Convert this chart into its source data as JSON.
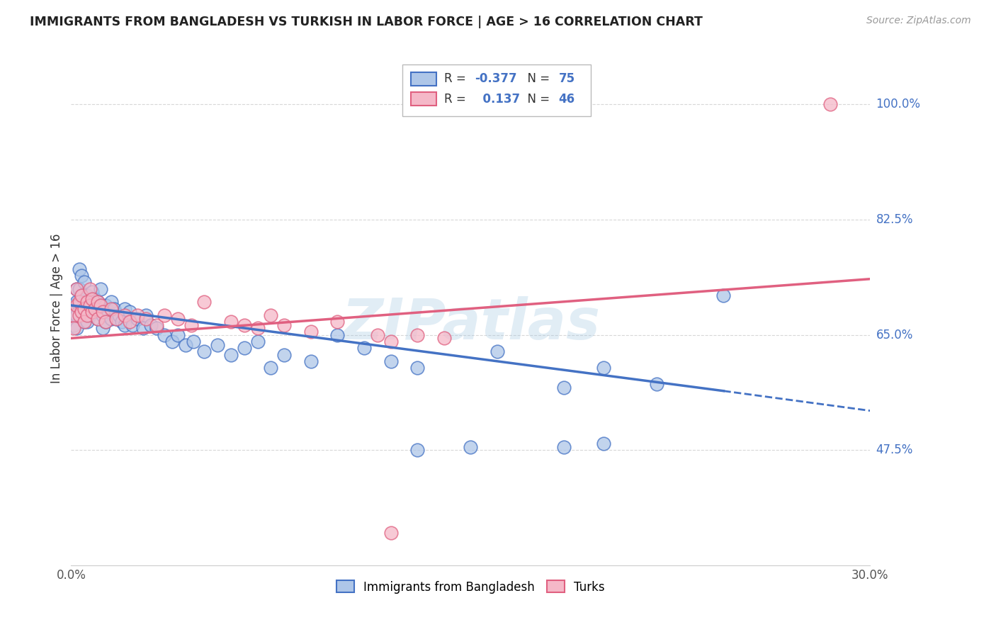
{
  "title": "IMMIGRANTS FROM BANGLADESH VS TURKISH IN LABOR FORCE | AGE > 16 CORRELATION CHART",
  "source": "Source: ZipAtlas.com",
  "ylabel": "In Labor Force | Age > 16",
  "xlim": [
    0.0,
    0.3
  ],
  "ylim": [
    0.3,
    1.08
  ],
  "xtick_pos": [
    0.0,
    0.05,
    0.1,
    0.15,
    0.2,
    0.25,
    0.3
  ],
  "xtick_labels": [
    "0.0%",
    "",
    "",
    "",
    "",
    "",
    "30.0%"
  ],
  "ytick_positions": [
    0.475,
    0.65,
    0.825,
    1.0
  ],
  "ytick_labels": [
    "47.5%",
    "65.0%",
    "82.5%",
    "100.0%"
  ],
  "bangladesh_R": -0.377,
  "bangladesh_N": 75,
  "turks_R": 0.137,
  "turks_N": 46,
  "bangladesh_color": "#aec6e8",
  "turks_color": "#f5b8c8",
  "bangladesh_line_color": "#4472c4",
  "turks_line_color": "#e06080",
  "watermark": "ZIPatlas",
  "bd_line_x0": 0.0,
  "bd_line_y0": 0.695,
  "bd_line_x1": 0.245,
  "bd_line_y1": 0.565,
  "bd_line_x2": 0.3,
  "bd_line_y2": 0.535,
  "tk_line_x0": 0.0,
  "tk_line_y0": 0.645,
  "tk_line_x1": 0.3,
  "tk_line_y1": 0.735,
  "bd_scatter_x": [
    0.001,
    0.001,
    0.001,
    0.002,
    0.002,
    0.002,
    0.002,
    0.003,
    0.003,
    0.003,
    0.004,
    0.004,
    0.004,
    0.005,
    0.005,
    0.005,
    0.006,
    0.006,
    0.006,
    0.007,
    0.007,
    0.008,
    0.008,
    0.009,
    0.009,
    0.01,
    0.01,
    0.011,
    0.011,
    0.012,
    0.012,
    0.013,
    0.013,
    0.014,
    0.015,
    0.015,
    0.016,
    0.017,
    0.018,
    0.019,
    0.02,
    0.02,
    0.022,
    0.023,
    0.025,
    0.027,
    0.028,
    0.03,
    0.032,
    0.035,
    0.038,
    0.04,
    0.043,
    0.046,
    0.05,
    0.055,
    0.06,
    0.065,
    0.07,
    0.075,
    0.08,
    0.09,
    0.1,
    0.11,
    0.12,
    0.13,
    0.15,
    0.16,
    0.185,
    0.2,
    0.22,
    0.245,
    0.2,
    0.185,
    0.13
  ],
  "bd_scatter_y": [
    0.695,
    0.68,
    0.665,
    0.72,
    0.7,
    0.68,
    0.66,
    0.75,
    0.72,
    0.695,
    0.74,
    0.71,
    0.685,
    0.73,
    0.7,
    0.67,
    0.71,
    0.69,
    0.67,
    0.7,
    0.68,
    0.715,
    0.69,
    0.705,
    0.685,
    0.7,
    0.675,
    0.72,
    0.695,
    0.68,
    0.66,
    0.695,
    0.67,
    0.685,
    0.7,
    0.675,
    0.69,
    0.675,
    0.68,
    0.67,
    0.69,
    0.665,
    0.685,
    0.665,
    0.675,
    0.66,
    0.68,
    0.665,
    0.66,
    0.65,
    0.64,
    0.65,
    0.635,
    0.64,
    0.625,
    0.635,
    0.62,
    0.63,
    0.64,
    0.6,
    0.62,
    0.61,
    0.65,
    0.63,
    0.61,
    0.6,
    0.48,
    0.625,
    0.57,
    0.6,
    0.575,
    0.71,
    0.485,
    0.48,
    0.475
  ],
  "tk_scatter_x": [
    0.001,
    0.001,
    0.002,
    0.002,
    0.003,
    0.003,
    0.004,
    0.004,
    0.005,
    0.005,
    0.006,
    0.006,
    0.007,
    0.007,
    0.008,
    0.008,
    0.009,
    0.01,
    0.01,
    0.011,
    0.012,
    0.013,
    0.015,
    0.017,
    0.02,
    0.022,
    0.025,
    0.028,
    0.032,
    0.035,
    0.04,
    0.045,
    0.05,
    0.06,
    0.065,
    0.07,
    0.075,
    0.08,
    0.09,
    0.1,
    0.115,
    0.12,
    0.13,
    0.14,
    0.285,
    0.12
  ],
  "tk_scatter_y": [
    0.68,
    0.66,
    0.72,
    0.695,
    0.7,
    0.68,
    0.71,
    0.685,
    0.69,
    0.67,
    0.7,
    0.68,
    0.72,
    0.695,
    0.705,
    0.685,
    0.69,
    0.7,
    0.675,
    0.695,
    0.685,
    0.67,
    0.69,
    0.675,
    0.68,
    0.67,
    0.68,
    0.675,
    0.665,
    0.68,
    0.675,
    0.665,
    0.7,
    0.67,
    0.665,
    0.66,
    0.68,
    0.665,
    0.655,
    0.67,
    0.65,
    0.64,
    0.65,
    0.645,
    1.0,
    0.35
  ]
}
